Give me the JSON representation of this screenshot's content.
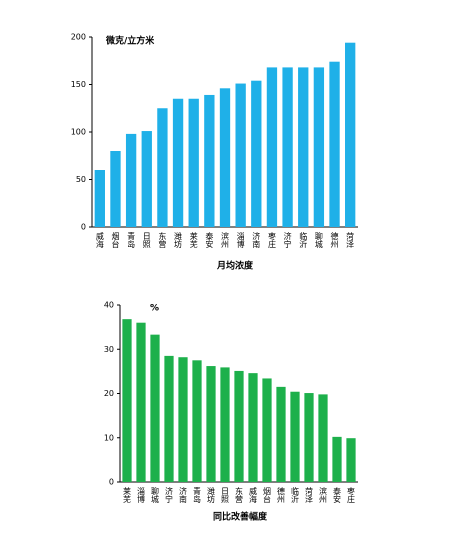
{
  "chart_data": [
    {
      "type": "bar",
      "y_unit": "微克/立方米",
      "x_label": "月均浓度",
      "color": "#1fb0e8",
      "categories": [
        "威海",
        "烟台",
        "青岛",
        "日照",
        "东营",
        "潍坊",
        "莱芜",
        "泰安",
        "滨州",
        "淄博",
        "济南",
        "枣庄",
        "济宁",
        "临沂",
        "聊城",
        "德州",
        "菏泽"
      ],
      "values": [
        60,
        80,
        98,
        101,
        125,
        135,
        135,
        139,
        146,
        151,
        154,
        168,
        168,
        168,
        168,
        174,
        194
      ],
      "ylim": [
        0,
        200
      ],
      "yticks": [
        0,
        50,
        100,
        150,
        200
      ]
    },
    {
      "type": "bar",
      "y_unit": "%",
      "x_label": "同比改善幅度",
      "color": "#1db04b",
      "categories": [
        "莱芜",
        "淄博",
        "聊城",
        "济宁",
        "济南",
        "青岛",
        "潍坊",
        "日照",
        "东营",
        "威海",
        "烟台",
        "德州",
        "临沂",
        "菏泽",
        "滨州",
        "泰安",
        "枣庄"
      ],
      "values": [
        36.8,
        36.0,
        33.3,
        28.5,
        28.2,
        27.5,
        26.2,
        25.9,
        25.1,
        24.6,
        23.4,
        21.5,
        20.4,
        20.1,
        19.8,
        10.2,
        9.9
      ],
      "ylim": [
        0,
        40
      ],
      "yticks": [
        0,
        10,
        20,
        30,
        40
      ]
    }
  ]
}
